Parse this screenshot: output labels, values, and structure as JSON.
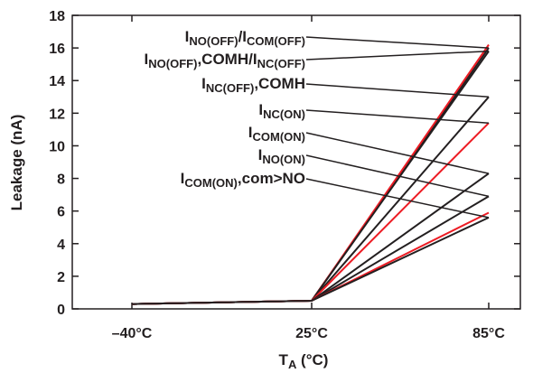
{
  "chart_data": {
    "type": "line",
    "x_categories": [
      "–40°C",
      "25°C",
      "85°C"
    ],
    "xlabel": {
      "main": "T",
      "sub": "A",
      "unit": " (°C)"
    },
    "ylabel": "Leakage (nA)",
    "ylim": [
      0,
      18
    ],
    "yticks": [
      0,
      2,
      4,
      6,
      8,
      10,
      12,
      14,
      16,
      18
    ],
    "grid": false,
    "series": [
      {
        "color": "#231f20",
        "values": [
          0.3,
          0.5,
          16.0
        ]
      },
      {
        "color": "#ed1c24",
        "values": [
          0.3,
          0.5,
          16.2
        ]
      },
      {
        "color": "#231f20",
        "values": [
          0.3,
          0.5,
          15.8
        ]
      },
      {
        "color": "#231f20",
        "values": [
          0.3,
          0.5,
          13.0
        ]
      },
      {
        "color": "#ed1c24",
        "values": [
          0.3,
          0.5,
          11.4
        ]
      },
      {
        "color": "#231f20",
        "values": [
          0.3,
          0.5,
          8.3
        ]
      },
      {
        "color": "#231f20",
        "values": [
          0.3,
          0.5,
          6.9
        ]
      },
      {
        "color": "#ed1c24",
        "values": [
          0.3,
          0.5,
          5.9
        ]
      },
      {
        "color": "#231f20",
        "values": [
          0.3,
          0.5,
          5.6
        ]
      }
    ],
    "annotations": [
      {
        "parts": [
          {
            "t": "I"
          },
          {
            "t": "NO(OFF)",
            "sub": true
          },
          {
            "t": "/I"
          },
          {
            "t": "COM(OFF)",
            "sub": true
          }
        ],
        "target": 16.0,
        "label_y": 46
      },
      {
        "parts": [
          {
            "t": "I"
          },
          {
            "t": "NO(OFF)",
            "sub": true
          },
          {
            "t": ",COMH"
          },
          {
            "t": "/I"
          },
          {
            "t": "NC(OFF)",
            "sub": true
          }
        ],
        "target": 15.8,
        "label_y": 71
      },
      {
        "parts": [
          {
            "t": "I"
          },
          {
            "t": "NC(OFF)",
            "sub": true
          },
          {
            "t": ",COMH"
          }
        ],
        "target": 13.0,
        "label_y": 98
      },
      {
        "parts": [
          {
            "t": "I"
          },
          {
            "t": "NC(ON)",
            "sub": true
          }
        ],
        "target": 11.4,
        "label_y": 127
      },
      {
        "parts": [
          {
            "t": "I"
          },
          {
            "t": "COM(ON)",
            "sub": true
          }
        ],
        "target": 8.3,
        "label_y": 152
      },
      {
        "parts": [
          {
            "t": "I"
          },
          {
            "t": "NO(ON)",
            "sub": true
          }
        ],
        "target": 6.9,
        "label_y": 177
      },
      {
        "parts": [
          {
            "t": "I"
          },
          {
            "t": "COM(ON)",
            "sub": true
          },
          {
            "t": ",com>NO"
          }
        ],
        "target": 5.6,
        "label_y": 203
      }
    ]
  }
}
